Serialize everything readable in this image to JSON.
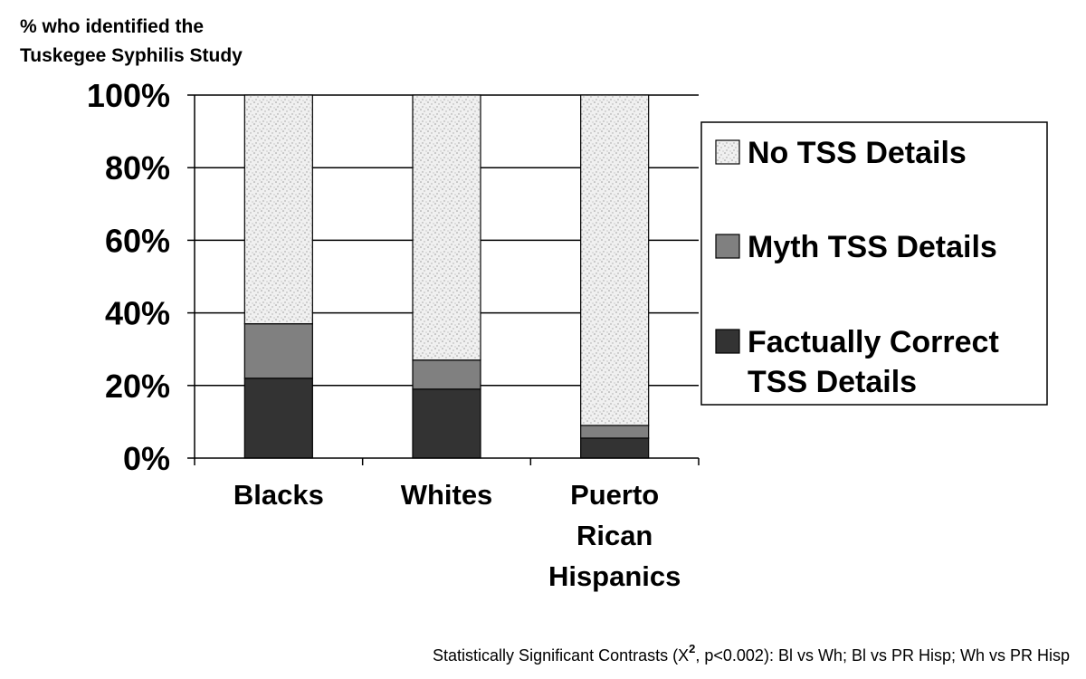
{
  "chart_data": {
    "type": "bar",
    "stacked": true,
    "normalized_percent": true,
    "ylabel": [
      "% who identified the",
      "Tuskegee Syphilis Study"
    ],
    "ylim": [
      0,
      100
    ],
    "yticks": [
      "0%",
      "20%",
      "40%",
      "60%",
      "80%",
      "100%"
    ],
    "grid": true,
    "legend_position": "right",
    "categories": [
      [
        "Blacks"
      ],
      [
        "Whites"
      ],
      [
        "Puerto",
        "Rican",
        "Hispanics"
      ]
    ],
    "series": [
      {
        "name": [
          "Factually Correct",
          "TSS Details"
        ],
        "values": [
          22,
          19,
          5.5
        ],
        "color": "#333333",
        "pattern": "solid"
      },
      {
        "name": [
          "Myth TSS Details"
        ],
        "values": [
          15,
          8,
          3.5
        ],
        "color": "#808080",
        "pattern": "solid"
      },
      {
        "name": [
          "No TSS Details"
        ],
        "values": [
          63,
          73,
          91
        ],
        "color": "#e6e6e6",
        "pattern": "speckle"
      }
    ],
    "footnote": {
      "before": "Statistically Significant Contrasts (X",
      "sup": "2",
      "after": ", p<0.002): Bl vs Wh;  Bl vs PR Hisp;  Wh vs PR Hisp"
    }
  }
}
